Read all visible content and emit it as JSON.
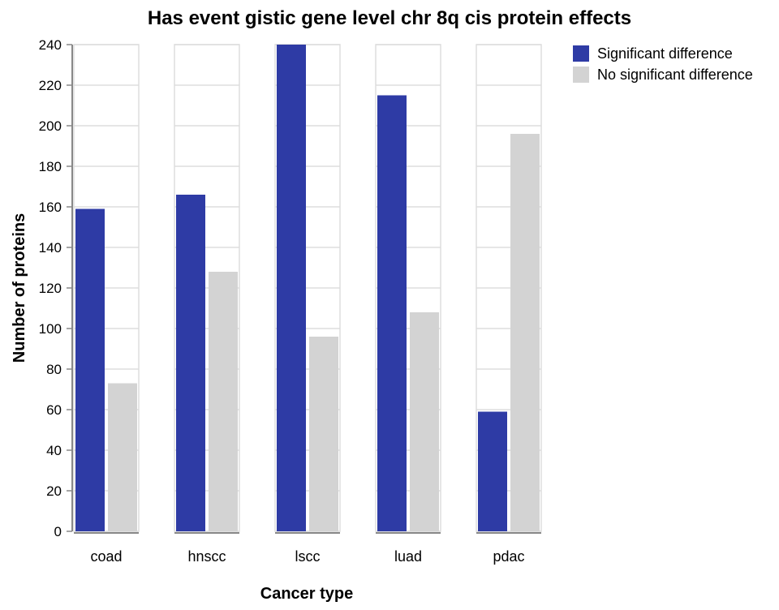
{
  "chart_data": {
    "type": "bar",
    "title": "Has event gistic gene level chr 8q cis protein effects",
    "xlabel": "Cancer type",
    "ylabel": "Number of proteins",
    "categories": [
      "coad",
      "hnscc",
      "lscc",
      "luad",
      "pdac"
    ],
    "series": [
      {
        "name": "Significant difference",
        "color": "#2e3ba5",
        "values": [
          159,
          166,
          240,
          215,
          59
        ]
      },
      {
        "name": "No significant difference",
        "color": "#d3d3d3",
        "values": [
          73,
          128,
          96,
          108,
          196
        ]
      }
    ],
    "ylim": [
      0,
      240
    ],
    "yticks": [
      0,
      20,
      40,
      60,
      80,
      100,
      120,
      140,
      160,
      180,
      200,
      220,
      240
    ],
    "grid": true,
    "legend_position": "top-right"
  }
}
